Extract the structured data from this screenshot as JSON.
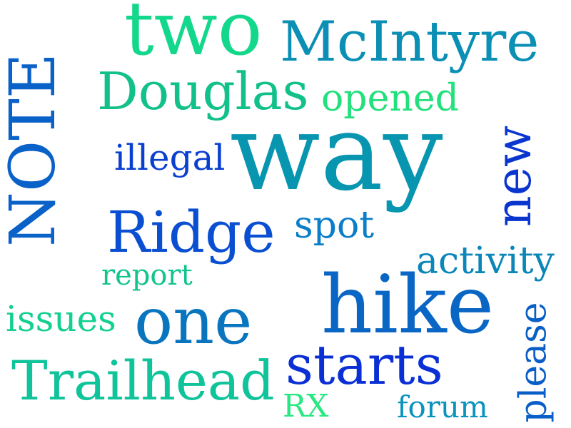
{
  "word_cloud": {
    "background": "#ffffff",
    "words": [
      {
        "id": "two",
        "text": "two",
        "color": "#13d88c"
      },
      {
        "id": "mcintyre",
        "text": "McIntyre",
        "color": "#0b8fb5"
      },
      {
        "id": "note",
        "text": "NOTE",
        "color": "#0a62c9"
      },
      {
        "id": "douglas",
        "text": "Douglas",
        "color": "#12c08a"
      },
      {
        "id": "opened",
        "text": "opened",
        "color": "#22e07c"
      },
      {
        "id": "illegal",
        "text": "illegal",
        "color": "#0a3fd0"
      },
      {
        "id": "way",
        "text": "way",
        "color": "#0795b0"
      },
      {
        "id": "new",
        "text": "new",
        "color": "#0a35cf"
      },
      {
        "id": "ridge",
        "text": "Ridge",
        "color": "#0a4fd2"
      },
      {
        "id": "spot",
        "text": "spot",
        "color": "#0a7ec8"
      },
      {
        "id": "activity",
        "text": "activity",
        "color": "#0a86b9"
      },
      {
        "id": "report",
        "text": "report",
        "color": "#13c48e"
      },
      {
        "id": "issues",
        "text": "issues",
        "color": "#13cf91"
      },
      {
        "id": "one",
        "text": "one",
        "color": "#0a75bf"
      },
      {
        "id": "hike",
        "text": "hike",
        "color": "#0a66c4"
      },
      {
        "id": "please",
        "text": "please",
        "color": "#0a5ec7"
      },
      {
        "id": "trailhead",
        "text": "Trailhead",
        "color": "#0fc39a"
      },
      {
        "id": "starts",
        "text": "starts",
        "color": "#0a2fd4"
      },
      {
        "id": "rx",
        "text": "RX",
        "color": "#27e882"
      },
      {
        "id": "forum",
        "text": "forum",
        "color": "#0a93bd"
      }
    ]
  }
}
